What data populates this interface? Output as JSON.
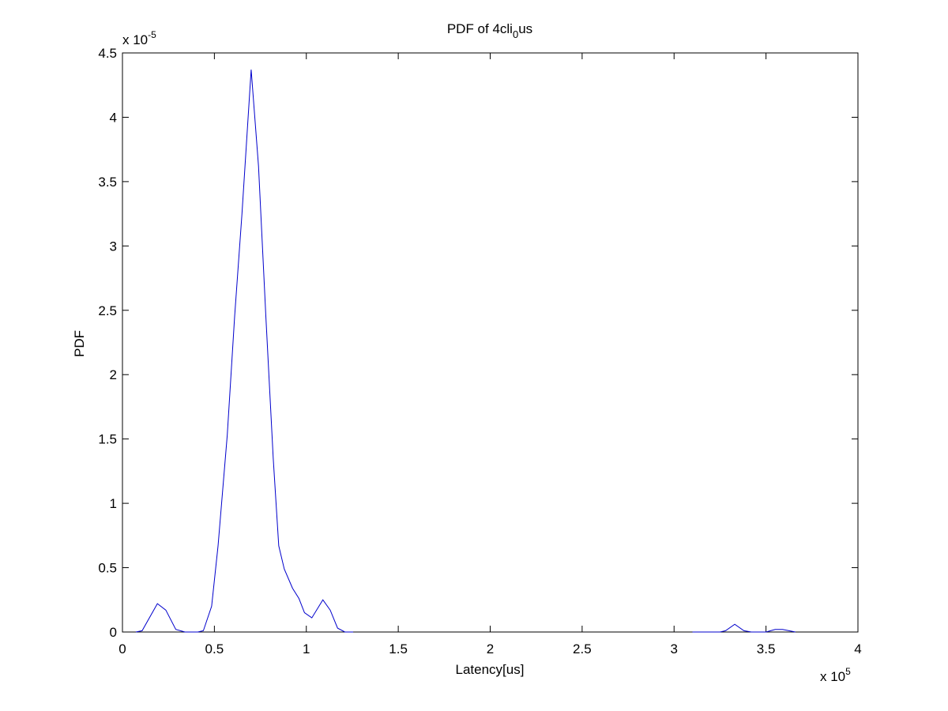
{
  "chart_data": {
    "type": "line",
    "title_parts": [
      "PDF of 4cli",
      "0",
      "us"
    ],
    "x_label": "Latency[us]",
    "y_label": "PDF",
    "x_multiplier": {
      "base": "x 10",
      "exponent": "5"
    },
    "y_multiplier": {
      "base": "x 10",
      "exponent": "-5"
    },
    "xlim": [
      0,
      4
    ],
    "ylim": [
      0,
      4.5
    ],
    "xticks": [
      0,
      0.5,
      1,
      1.5,
      2,
      2.5,
      3,
      3.5,
      4
    ],
    "yticks": [
      0,
      0.5,
      1,
      1.5,
      2,
      2.5,
      3,
      3.5,
      4,
      4.5
    ],
    "grid": false,
    "series": [
      {
        "color": "#0000cc",
        "x": [
          0.073,
          0.107,
          0.19,
          0.236,
          0.29,
          0.34,
          0.41,
          0.44,
          0.485,
          0.52,
          0.57,
          0.61,
          0.65,
          0.7,
          0.74,
          0.78,
          0.82,
          0.85,
          0.88,
          0.925,
          0.96,
          0.99,
          1.03,
          1.09,
          1.13,
          1.17,
          1.21,
          1.255,
          null,
          3.1,
          3.25,
          3.28,
          3.33,
          3.38,
          3.42,
          3.5,
          3.55,
          3.59,
          3.66
        ],
        "values": [
          0,
          0.01,
          0.22,
          0.17,
          0.02,
          0,
          0,
          0.01,
          0.2,
          0.67,
          1.53,
          2.45,
          3.25,
          4.37,
          3.62,
          2.45,
          1.35,
          0.67,
          0.49,
          0.34,
          0.26,
          0.15,
          0.11,
          0.25,
          0.17,
          0.03,
          0,
          0,
          null,
          0,
          0,
          0.01,
          0.06,
          0.01,
          0,
          0,
          0.02,
          0.02,
          0
        ]
      }
    ]
  }
}
